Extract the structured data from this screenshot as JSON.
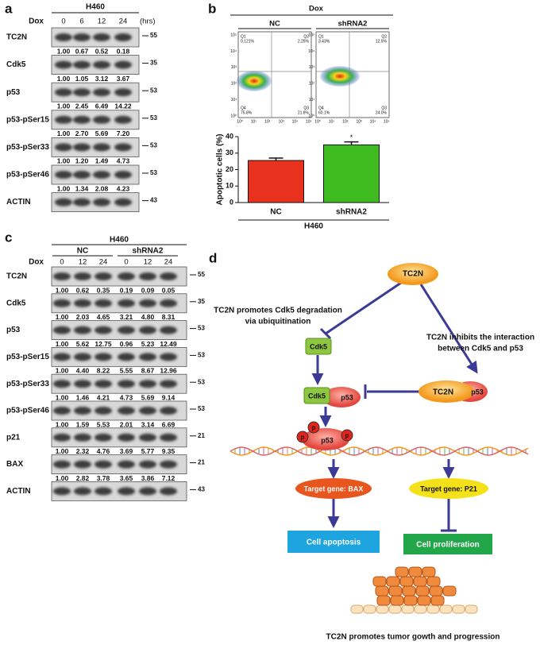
{
  "panel_a": {
    "label": "a",
    "cell_line": "H460",
    "treatment": "Dox",
    "times": [
      "0",
      "6",
      "12",
      "24"
    ],
    "unit": "(hrs)",
    "blots": [
      {
        "name": "TC2N",
        "mw": "55",
        "values": [
          "1.00",
          "0.67",
          "0.52",
          "0.18"
        ]
      },
      {
        "name": "Cdk5",
        "mw": "35",
        "values": [
          "1.00",
          "1.05",
          "3.12",
          "3.67"
        ]
      },
      {
        "name": "p53",
        "mw": "53",
        "values": [
          "1.00",
          "2.45",
          "6.49",
          "14.22"
        ]
      },
      {
        "name": "p53-pSer15",
        "mw": "53",
        "values": [
          "1.00",
          "2.70",
          "5.69",
          "7.20"
        ]
      },
      {
        "name": "p53-pSer33",
        "mw": "53",
        "values": [
          "1.00",
          "1.20",
          "1.49",
          "4.73"
        ]
      },
      {
        "name": "p53-pSer46",
        "mw": "53",
        "values": [
          "1.00",
          "1.34",
          "2.08",
          "4.23"
        ]
      },
      {
        "name": "ACTIN",
        "mw": "43"
      }
    ]
  },
  "panel_b": {
    "label": "b",
    "treatment": "Dox",
    "axis_ticks": [
      "10⁰",
      "10¹",
      "10²",
      "10³",
      "10⁴",
      "10⁵"
    ],
    "plots": [
      {
        "name": "NC",
        "quadrants": [
          {
            "label": "Q1",
            "value": "0.121%"
          },
          {
            "label": "Q2",
            "value": "2.25%"
          },
          {
            "label": "Q4",
            "value": "75.8%"
          },
          {
            "label": "Q3",
            "value": "21.8%"
          }
        ]
      },
      {
        "name": "shRNA2",
        "quadrants": [
          {
            "label": "Q1",
            "value": "3.43%"
          },
          {
            "label": "Q2",
            "value": "12.5%"
          },
          {
            "label": "Q4",
            "value": "60.1%"
          },
          {
            "label": "Q3",
            "value": "24.0%"
          }
        ]
      }
    ]
  },
  "chart_data": {
    "type": "bar",
    "ylabel": "Apoptotic cells (%)",
    "xlabel": "H460",
    "categories": [
      "NC",
      "shRNA2"
    ],
    "values": [
      25.5,
      35
    ],
    "errors": [
      1.5,
      1.8
    ],
    "colors": [
      "#e8321e",
      "#3dbb1f"
    ],
    "ylim": [
      0,
      40
    ],
    "yticks": [
      0,
      10,
      20,
      30,
      40
    ],
    "annotation": "*"
  },
  "panel_c": {
    "label": "c",
    "cell_line": "H460",
    "groups": [
      "NC",
      "shRNA2"
    ],
    "treatment": "Dox",
    "times": [
      "0",
      "12",
      "24",
      "0",
      "12",
      "24"
    ],
    "blots": [
      {
        "name": "TC2N",
        "mw": "55",
        "values": [
          "1.00",
          "0.62",
          "0.35",
          "0.19",
          "0.09",
          "0.05"
        ]
      },
      {
        "name": "Cdk5",
        "mw": "35",
        "values": [
          "1.00",
          "2.03",
          "4.65",
          "3.21",
          "4.80",
          "8.31"
        ]
      },
      {
        "name": "p53",
        "mw": "53",
        "values": [
          "1.00",
          "5.62",
          "12.75",
          "0.96",
          "5.23",
          "12.49"
        ]
      },
      {
        "name": "p53-pSer15",
        "mw": "53",
        "values": [
          "1.00",
          "4.40",
          "8.22",
          "5.55",
          "8.67",
          "12.96"
        ]
      },
      {
        "name": "p53-pSer33",
        "mw": "53",
        "values": [
          "1.00",
          "1.46",
          "4.21",
          "4.73",
          "5.69",
          "9.14"
        ]
      },
      {
        "name": "p53-pSer46",
        "mw": "53",
        "values": [
          "1.00",
          "1.59",
          "5.53",
          "2.01",
          "3.14",
          "6.69"
        ]
      },
      {
        "name": "p21",
        "mw": "21",
        "values": [
          "1.00",
          "2.32",
          "4.76",
          "3.69",
          "5.77",
          "9.35"
        ]
      },
      {
        "name": "BAX",
        "mw": "21",
        "values": [
          "1.00",
          "2.82",
          "3.78",
          "3.65",
          "3.86",
          "7.12"
        ]
      },
      {
        "name": "ACTIN",
        "mw": "43"
      }
    ]
  },
  "panel_d": {
    "label": "d",
    "top": "TC2N",
    "left_note": [
      "TC2N promotes Cdk5 degradation",
      "via ubiquitination"
    ],
    "right_note": [
      "TC2N inhibits the interaction",
      "between Cdk5 and p53"
    ],
    "cdk5": "Cdk5",
    "complex_cdk5": "Cdk5",
    "complex_p53": "p53",
    "inhibitor_tc2n": "TC2N",
    "inhibitor_p53": "p53",
    "phospho": [
      "p",
      "p",
      "p"
    ],
    "phospho_p53": "p53",
    "target_bax": "Target gene: BAX",
    "target_p21": "Target gene: P21",
    "apoptosis": "Cell apoptosis",
    "proliferation": "Cell proliferation",
    "conclusion": "TC2N promotes tumor gowth and progression"
  }
}
